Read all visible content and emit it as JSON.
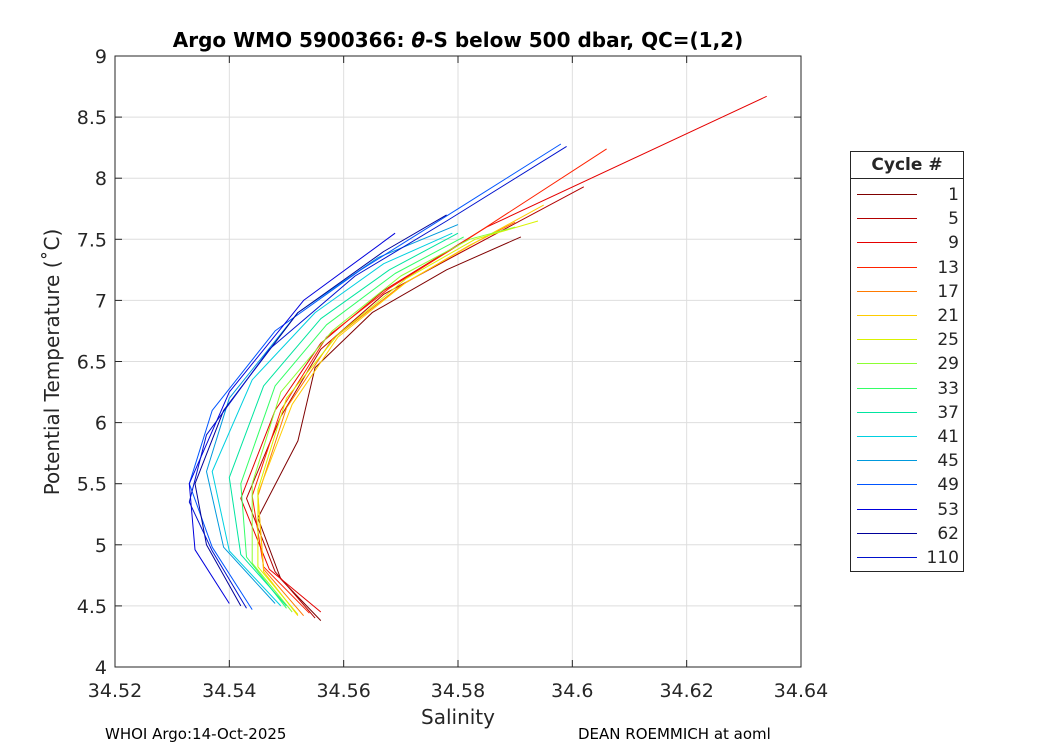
{
  "chart_data": {
    "type": "line",
    "title": "Argo WMO 5900366: θ-S below 500 dbar,  QC=(1,2)",
    "title_parts": {
      "prefix": "Argo WMO 5900366: ",
      "symbol": "θ",
      "suffix": "-S below 500 dbar,  QC=(1,2)"
    },
    "xlabel": "Salinity",
    "ylabel": "Potential Temperature (˚C)",
    "xlim": [
      34.52,
      34.64
    ],
    "ylim": [
      4,
      9
    ],
    "xticks": [
      34.52,
      34.54,
      34.56,
      34.58,
      34.6,
      34.62,
      34.64
    ],
    "xtick_labels": [
      "34.52",
      "34.54",
      "34.56",
      "34.58",
      "34.6",
      "34.62",
      "34.64"
    ],
    "yticks": [
      4,
      4.5,
      5,
      5.5,
      6,
      6.5,
      7,
      7.5,
      8,
      8.5,
      9
    ],
    "ytick_labels": [
      "4",
      "4.5",
      "5",
      "5.5",
      "6",
      "6.5",
      "7",
      "7.5",
      "8",
      "8.5",
      "9"
    ],
    "grid": true,
    "legend_title": "Cycle #",
    "legend_position": "outside-right",
    "series": [
      {
        "name": "1",
        "color": "#7f0000",
        "points": [
          [
            34.556,
            4.38
          ],
          [
            34.549,
            4.72
          ],
          [
            34.545,
            5.22
          ],
          [
            34.552,
            5.85
          ],
          [
            34.555,
            6.45
          ],
          [
            34.565,
            6.9
          ],
          [
            34.578,
            7.25
          ],
          [
            34.591,
            7.52
          ]
        ]
      },
      {
        "name": "5",
        "color": "#b20000",
        "points": [
          [
            34.555,
            4.4
          ],
          [
            34.548,
            4.78
          ],
          [
            34.543,
            5.38
          ],
          [
            34.549,
            6.05
          ],
          [
            34.556,
            6.6
          ],
          [
            34.567,
            7.05
          ],
          [
            34.58,
            7.38
          ],
          [
            34.602,
            7.93
          ]
        ]
      },
      {
        "name": "9",
        "color": "#e50000",
        "points": [
          [
            34.556,
            4.45
          ],
          [
            34.547,
            4.8
          ],
          [
            34.542,
            5.38
          ],
          [
            34.548,
            6.1
          ],
          [
            34.556,
            6.65
          ],
          [
            34.567,
            7.08
          ],
          [
            34.585,
            7.6
          ],
          [
            34.634,
            8.67
          ]
        ]
      },
      {
        "name": "13",
        "color": "#ff2200",
        "points": [
          [
            34.554,
            4.44
          ],
          [
            34.546,
            4.82
          ],
          [
            34.544,
            5.4
          ],
          [
            34.549,
            6.1
          ],
          [
            34.557,
            6.7
          ],
          [
            34.568,
            7.1
          ],
          [
            34.58,
            7.45
          ],
          [
            34.606,
            8.24
          ]
        ]
      },
      {
        "name": "17",
        "color": "#ff7a00",
        "points": [
          [
            34.553,
            4.42
          ],
          [
            34.546,
            4.8
          ],
          [
            34.545,
            5.4
          ],
          [
            34.55,
            6.12
          ],
          [
            34.558,
            6.68
          ],
          [
            34.57,
            7.12
          ],
          [
            34.582,
            7.45
          ],
          [
            34.59,
            7.64
          ]
        ]
      },
      {
        "name": "21",
        "color": "#ffcc00",
        "points": [
          [
            34.552,
            4.42
          ],
          [
            34.546,
            4.78
          ],
          [
            34.545,
            5.42
          ],
          [
            34.551,
            6.15
          ],
          [
            34.559,
            6.7
          ],
          [
            34.571,
            7.15
          ],
          [
            34.584,
            7.5
          ],
          [
            34.595,
            7.78
          ]
        ]
      },
      {
        "name": "25",
        "color": "#d9f200",
        "points": [
          [
            34.552,
            4.43
          ],
          [
            34.545,
            4.82
          ],
          [
            34.545,
            5.45
          ],
          [
            34.55,
            6.2
          ],
          [
            34.559,
            6.72
          ],
          [
            34.571,
            7.18
          ],
          [
            34.583,
            7.5
          ],
          [
            34.594,
            7.65
          ]
        ]
      },
      {
        "name": "29",
        "color": "#8cff33",
        "points": [
          [
            34.551,
            4.45
          ],
          [
            34.544,
            4.85
          ],
          [
            34.544,
            5.5
          ],
          [
            34.549,
            6.25
          ],
          [
            34.558,
            6.75
          ],
          [
            34.57,
            7.2
          ],
          [
            34.582,
            7.5
          ],
          [
            34.59,
            7.6
          ]
        ]
      },
      {
        "name": "33",
        "color": "#33ff66",
        "points": [
          [
            34.55,
            4.48
          ],
          [
            34.543,
            4.9
          ],
          [
            34.542,
            5.5
          ],
          [
            34.548,
            6.3
          ],
          [
            34.557,
            6.8
          ],
          [
            34.569,
            7.22
          ],
          [
            34.581,
            7.52
          ]
        ]
      },
      {
        "name": "37",
        "color": "#00e5a0",
        "points": [
          [
            34.55,
            4.5
          ],
          [
            34.542,
            4.92
          ],
          [
            34.54,
            5.55
          ],
          [
            34.546,
            6.3
          ],
          [
            34.556,
            6.85
          ],
          [
            34.568,
            7.25
          ],
          [
            34.58,
            7.55
          ]
        ]
      },
      {
        "name": "41",
        "color": "#00d0e0",
        "points": [
          [
            34.549,
            4.5
          ],
          [
            34.54,
            4.95
          ],
          [
            34.537,
            5.6
          ],
          [
            34.544,
            6.35
          ],
          [
            34.555,
            6.9
          ],
          [
            34.567,
            7.3
          ],
          [
            34.579,
            7.55
          ]
        ]
      },
      {
        "name": "45",
        "color": "#0099dd",
        "points": [
          [
            34.548,
            4.52
          ],
          [
            34.539,
            4.98
          ],
          [
            34.536,
            5.6
          ],
          [
            34.54,
            6.2
          ],
          [
            34.552,
            6.9
          ],
          [
            34.566,
            7.35
          ],
          [
            34.58,
            7.62
          ]
        ]
      },
      {
        "name": "49",
        "color": "#0055ff",
        "points": [
          [
            34.544,
            4.47
          ],
          [
            34.537,
            4.98
          ],
          [
            34.533,
            5.5
          ],
          [
            34.537,
            6.1
          ],
          [
            34.548,
            6.75
          ],
          [
            34.563,
            7.25
          ],
          [
            34.58,
            7.75
          ],
          [
            34.598,
            8.28
          ]
        ]
      },
      {
        "name": "53",
        "color": "#0000dd",
        "points": [
          [
            34.54,
            4.52
          ],
          [
            34.534,
            4.96
          ],
          [
            34.533,
            5.5
          ],
          [
            34.54,
            6.25
          ],
          [
            34.553,
            7.0
          ],
          [
            34.569,
            7.55
          ]
        ]
      },
      {
        "name": "62",
        "color": "#000099",
        "points": [
          [
            34.542,
            4.5
          ],
          [
            34.536,
            5.0
          ],
          [
            34.534,
            5.5
          ],
          [
            34.539,
            6.1
          ],
          [
            34.552,
            6.9
          ],
          [
            34.567,
            7.4
          ],
          [
            34.578,
            7.7
          ]
        ]
      },
      {
        "name": "110",
        "color": "#0011cc",
        "points": [
          [
            34.543,
            4.48
          ],
          [
            34.537,
            4.95
          ],
          [
            34.533,
            5.35
          ],
          [
            34.536,
            5.9
          ],
          [
            34.547,
            6.6
          ],
          [
            34.562,
            7.2
          ],
          [
            34.578,
            7.65
          ],
          [
            34.599,
            8.26
          ]
        ]
      }
    ]
  },
  "footer": {
    "left": "WHOI Argo:14-Oct-2025",
    "right": "DEAN ROEMMICH at aoml"
  }
}
